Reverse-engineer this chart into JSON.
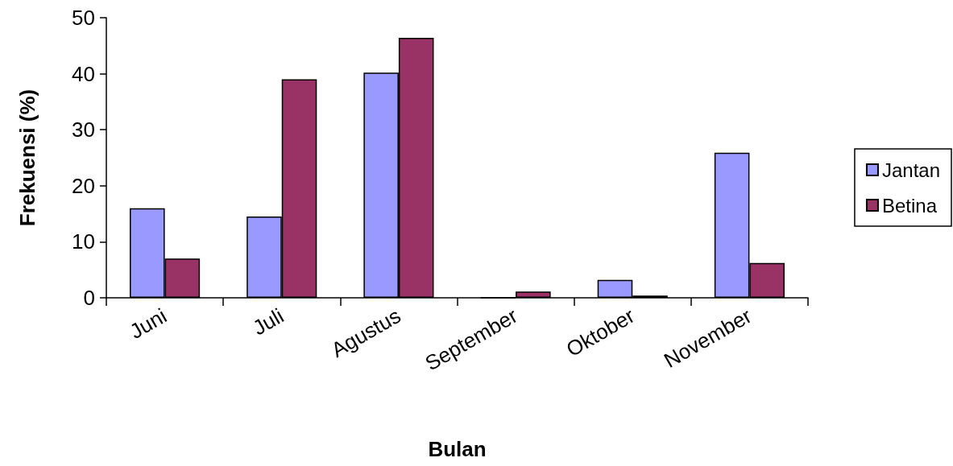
{
  "chart_data": {
    "type": "bar",
    "xlabel": "Bulan",
    "ylabel": "Frekuensi (%)",
    "categories": [
      "Juni",
      "Juli",
      "Agustus",
      "September",
      "Oktober",
      "November"
    ],
    "series": [
      {
        "name": "Jantan",
        "color": "#9999ff",
        "values": [
          16,
          14.5,
          40.2,
          0,
          3.2,
          25.9
        ]
      },
      {
        "name": "Betina",
        "color": "#993366",
        "values": [
          7,
          39,
          46.4,
          1.1,
          0.4,
          6.2
        ]
      }
    ],
    "ylim": [
      0,
      50
    ],
    "yticks": [
      0,
      10,
      20,
      30,
      40,
      50
    ],
    "grid": false,
    "legend": "right"
  }
}
